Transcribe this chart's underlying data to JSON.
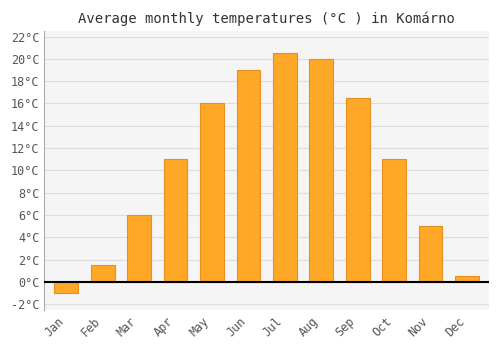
{
  "title": "Average monthly temperatures (°C ) in Komárno",
  "months": [
    "Jan",
    "Feb",
    "Mar",
    "Apr",
    "May",
    "Jun",
    "Jul",
    "Aug",
    "Sep",
    "Oct",
    "Nov",
    "Dec"
  ],
  "values": [
    -1.0,
    1.5,
    6.0,
    11.0,
    16.0,
    19.0,
    20.5,
    20.0,
    16.5,
    11.0,
    5.0,
    0.5
  ],
  "bar_color": "#FFA726",
  "bar_edge_color": "#E69020",
  "background_color": "#ffffff",
  "plot_bg_color": "#f5f5f5",
  "grid_color": "#dddddd",
  "ylim": [
    -2.5,
    22.5
  ],
  "yticks": [
    -2,
    0,
    2,
    4,
    6,
    8,
    10,
    12,
    14,
    16,
    18,
    20,
    22
  ],
  "title_fontsize": 10,
  "tick_fontsize": 8.5,
  "font_family": "monospace"
}
